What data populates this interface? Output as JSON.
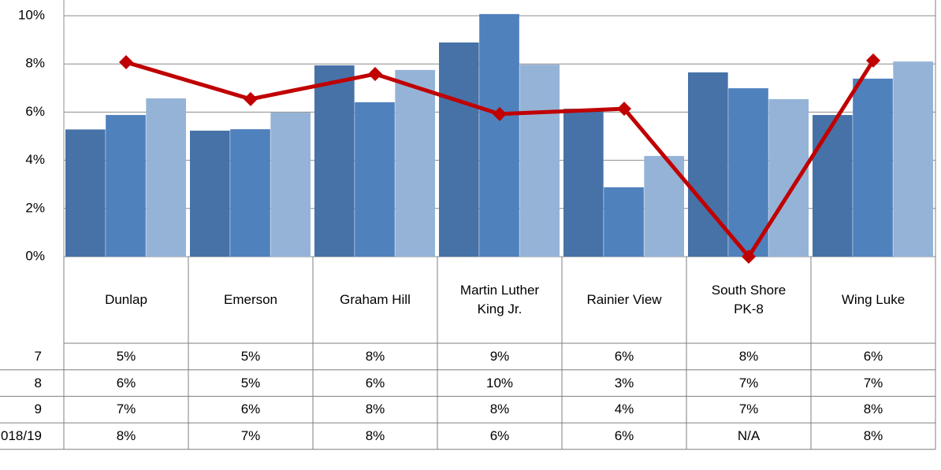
{
  "chart_data": {
    "type": "bar",
    "categories": [
      "Dunlap",
      "Emerson",
      "Graham Hill",
      "Martin Luther King Jr.",
      "Rainier View",
      "South Shore PK-8",
      "Wing Luke"
    ],
    "series": [
      {
        "name": "7",
        "type": "bar",
        "color": "#4672a8",
        "values": [
          5.28,
          5.23,
          7.94,
          8.89,
          6.14,
          7.65,
          5.88
        ],
        "value_labels": [
          "5%",
          "5%",
          "8%",
          "9%",
          "6%",
          "8%",
          "6%"
        ]
      },
      {
        "name": "8",
        "type": "bar",
        "color": "#4f81bd",
        "values": [
          5.88,
          5.29,
          6.41,
          10.07,
          2.88,
          6.99,
          7.39
        ],
        "value_labels": [
          "6%",
          "5%",
          "6%",
          "10%",
          "3%",
          "7%",
          "7%"
        ]
      },
      {
        "name": "9",
        "type": "bar",
        "color": "#95b3d7",
        "values": [
          6.57,
          5.98,
          7.75,
          7.97,
          4.18,
          6.54,
          8.1
        ],
        "value_labels": [
          "7%",
          "6%",
          "8%",
          "8%",
          "4%",
          "7%",
          "8%"
        ]
      },
      {
        "name": "018/19",
        "type": "line",
        "color": "#c00000",
        "values": [
          8.07,
          6.54,
          7.58,
          5.92,
          6.14,
          0,
          8.14
        ],
        "value_labels": [
          "8%",
          "7%",
          "8%",
          "6%",
          "6%",
          "N/A",
          "8%"
        ]
      }
    ],
    "ylim": [
      0,
      10
    ],
    "yticks": [
      {
        "value": 0,
        "label": "0%"
      },
      {
        "value": 2,
        "label": "2%"
      },
      {
        "value": 4,
        "label": "4%"
      },
      {
        "value": 6,
        "label": "6%"
      },
      {
        "value": 8,
        "label": "8%"
      },
      {
        "value": 10,
        "label": "10%"
      }
    ],
    "grid": true
  }
}
